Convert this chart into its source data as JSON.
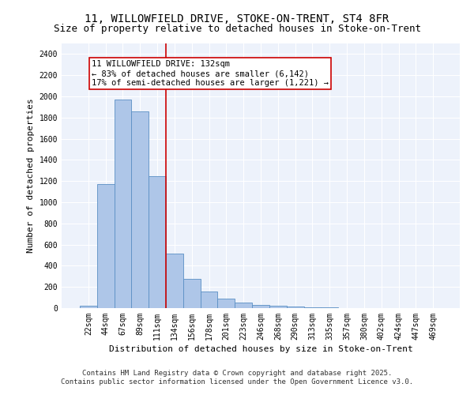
{
  "title_line1": "11, WILLOWFIELD DRIVE, STOKE-ON-TRENT, ST4 8FR",
  "title_line2": "Size of property relative to detached houses in Stoke-on-Trent",
  "xlabel": "Distribution of detached houses by size in Stoke-on-Trent",
  "ylabel": "Number of detached properties",
  "bar_labels": [
    "22sqm",
    "44sqm",
    "67sqm",
    "89sqm",
    "111sqm",
    "134sqm",
    "156sqm",
    "178sqm",
    "201sqm",
    "223sqm",
    "246sqm",
    "268sqm",
    "290sqm",
    "313sqm",
    "335sqm",
    "357sqm",
    "380sqm",
    "402sqm",
    "424sqm",
    "447sqm",
    "469sqm"
  ],
  "bar_values": [
    25,
    1170,
    1970,
    1855,
    1245,
    515,
    275,
    155,
    90,
    50,
    30,
    25,
    15,
    8,
    5,
    3,
    2,
    2,
    1,
    1,
    1
  ],
  "bar_color": "#aec6e8",
  "bar_edge_color": "#5a8fc4",
  "highlight_line_color": "#cc0000",
  "annotation_text": "11 WILLOWFIELD DRIVE: 132sqm\n← 83% of detached houses are smaller (6,142)\n17% of semi-detached houses are larger (1,221) →",
  "annotation_box_color": "#cc0000",
  "annotation_text_color": "#000000",
  "ylim": [
    0,
    2500
  ],
  "yticks": [
    0,
    200,
    400,
    600,
    800,
    1000,
    1200,
    1400,
    1600,
    1800,
    2000,
    2200,
    2400
  ],
  "footer_line1": "Contains HM Land Registry data © Crown copyright and database right 2025.",
  "footer_line2": "Contains public sector information licensed under the Open Government Licence v3.0.",
  "bg_color": "#edf2fb",
  "grid_color": "#ffffff",
  "title_fontsize": 10,
  "subtitle_fontsize": 9,
  "axis_label_fontsize": 8,
  "tick_fontsize": 7,
  "annotation_fontsize": 7.5,
  "footer_fontsize": 6.5
}
